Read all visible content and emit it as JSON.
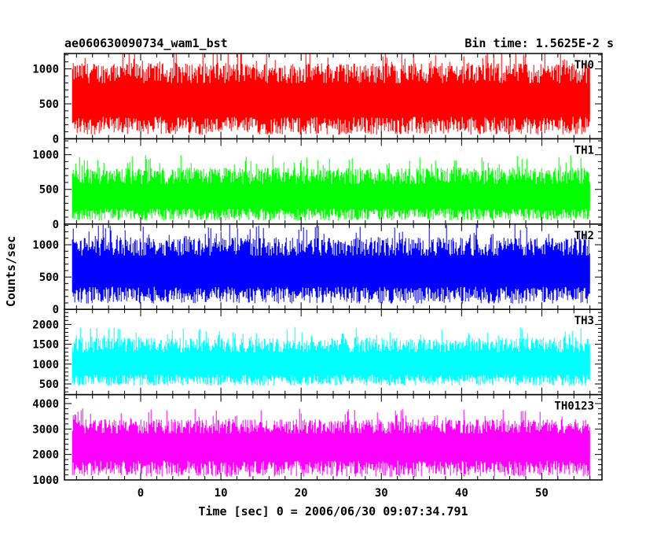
{
  "header": {
    "left": "ae060630090734_wam1_bst",
    "right": "Bin time: 1.5625E-2 s"
  },
  "ylabel": "Counts/sec",
  "xlabel": "Time [sec] 0 = 2006/06/30 09:07:34.791",
  "chart_data": {
    "type": "line",
    "x_range": [
      -8.5,
      56.0
    ],
    "xlim": [
      -9.5,
      57.5
    ],
    "xticks": [
      "0",
      "10",
      "20",
      "30",
      "40",
      "50"
    ],
    "xtick_values": [
      0,
      10,
      20,
      30,
      40,
      50
    ],
    "series": [
      {
        "name": "TH0",
        "color": "#ff0000",
        "ylim": [
          0,
          1220
        ],
        "yticks": [
          0,
          500,
          1000
        ],
        "base": 600,
        "spread": 440,
        "dip_low": 30,
        "clip_top": true
      },
      {
        "name": "TH1",
        "color": "#00ff00",
        "ylim": [
          0,
          1230
        ],
        "yticks": [
          0,
          500,
          1000
        ],
        "base": 420,
        "spread": 360,
        "dip_low": 30,
        "clip_top": false
      },
      {
        "name": "TH2",
        "color": "#0000ff",
        "ylim": [
          0,
          1320
        ],
        "yticks": [
          0,
          500,
          1000
        ],
        "base": 640,
        "spread": 430,
        "dip_low": 60,
        "clip_top": true
      },
      {
        "name": "TH3",
        "color": "#00ffff",
        "ylim": [
          230,
          2380
        ],
        "yticks": [
          500,
          1000,
          1500,
          2000
        ],
        "base": 1050,
        "spread": 560,
        "dip_low": 420,
        "clip_top": false
      },
      {
        "name": "TH0123",
        "color": "#ff00ff",
        "ylim": [
          1000,
          4350
        ],
        "yticks": [
          1000,
          2000,
          3000,
          4000
        ],
        "base": 2450,
        "spread": 850,
        "dip_low": 1050,
        "clip_top": false
      }
    ]
  }
}
